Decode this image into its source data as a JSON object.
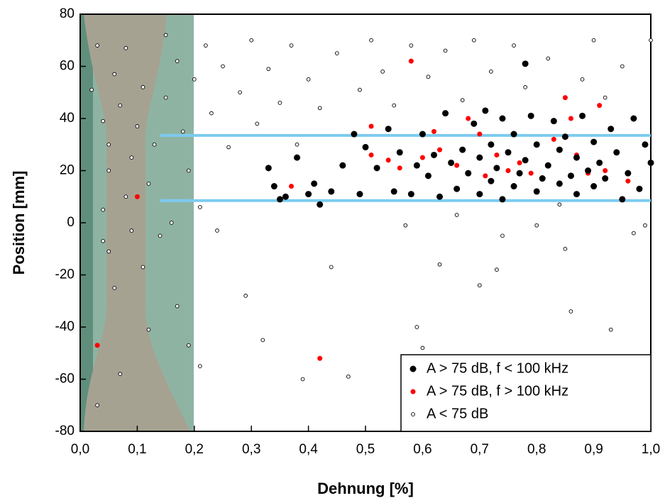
{
  "chart_data": {
    "type": "scatter",
    "xlabel": "Dehnung [%]",
    "ylabel": "Position [mm]",
    "xlim": [
      0,
      1.0
    ],
    "ylim": [
      -80,
      80
    ],
    "xticks": [
      {
        "value": 0,
        "label": "0,0"
      },
      {
        "value": 0.1,
        "label": "0,1"
      },
      {
        "value": 0.2,
        "label": "0,2"
      },
      {
        "value": 0.3,
        "label": "0,3"
      },
      {
        "value": 0.4,
        "label": "0,4"
      },
      {
        "value": 0.5,
        "label": "0,5"
      },
      {
        "value": 0.6,
        "label": "0,6"
      },
      {
        "value": 0.7,
        "label": "0,7"
      },
      {
        "value": 0.8,
        "label": "0,8"
      },
      {
        "value": 0.9,
        "label": "0,9"
      },
      {
        "value": 1.0,
        "label": "1,0"
      }
    ],
    "yticks": [
      -80,
      -60,
      -40,
      -20,
      0,
      20,
      40,
      60,
      80
    ],
    "legend": "lower right",
    "reference_lines": [
      {
        "y": 33.5,
        "x": [
          0.14,
          1.0
        ],
        "color": "#7ccbf0"
      },
      {
        "y": 8.5,
        "x": [
          0.14,
          1.0
        ],
        "color": "#7ccbf0"
      }
    ],
    "series": [
      {
        "name": "A > 75 dB, f < 100 kHz",
        "color": "#000000",
        "x": [
          0.33,
          0.34,
          0.35,
          0.36,
          0.38,
          0.4,
          0.41,
          0.42,
          0.44,
          0.46,
          0.48,
          0.49,
          0.5,
          0.52,
          0.54,
          0.55,
          0.56,
          0.58,
          0.59,
          0.6,
          0.61,
          0.62,
          0.63,
          0.64,
          0.65,
          0.66,
          0.67,
          0.68,
          0.69,
          0.7,
          0.7,
          0.71,
          0.72,
          0.72,
          0.73,
          0.74,
          0.74,
          0.75,
          0.76,
          0.76,
          0.77,
          0.78,
          0.78,
          0.79,
          0.8,
          0.8,
          0.81,
          0.82,
          0.83,
          0.84,
          0.84,
          0.85,
          0.86,
          0.87,
          0.87,
          0.88,
          0.89,
          0.9,
          0.9,
          0.91,
          0.92,
          0.93,
          0.94,
          0.95,
          0.96,
          0.97,
          0.98,
          0.99,
          1.0
        ],
        "values": [
          21,
          14,
          9,
          10,
          25,
          11,
          15,
          7,
          12,
          22,
          34,
          11,
          29,
          21,
          36,
          12,
          27,
          11,
          22,
          34,
          18,
          26,
          10,
          42,
          23,
          13,
          28,
          19,
          38,
          11,
          25,
          43,
          16,
          30,
          21,
          9,
          40,
          27,
          14,
          34,
          19,
          24,
          61,
          41,
          12,
          30,
          17,
          22,
          39,
          15,
          28,
          33,
          18,
          11,
          25,
          41,
          20,
          14,
          31,
          23,
          17,
          36,
          27,
          9,
          19,
          40,
          13,
          30,
          23
        ]
      },
      {
        "name": "A > 75 dB, f > 100 kHz",
        "color": "#ff0000",
        "x": [
          0.03,
          0.1,
          0.42,
          0.51,
          0.51,
          0.54,
          0.56,
          0.58,
          0.6,
          0.62,
          0.63,
          0.64,
          0.66,
          0.68,
          0.7,
          0.71,
          0.73,
          0.75,
          0.77,
          0.79,
          0.81,
          0.83,
          0.85,
          0.86,
          0.87,
          0.89,
          0.91,
          0.92,
          0.94,
          0.96,
          0.37
        ],
        "values": [
          -47,
          10,
          -52,
          37,
          26,
          24,
          21,
          62,
          25,
          35,
          28,
          42,
          22,
          40,
          34,
          18,
          26,
          20,
          23,
          19,
          17,
          32,
          48,
          40,
          26,
          19,
          45,
          20,
          27,
          16,
          14
        ]
      },
      {
        "name": "A < 75 dB",
        "color": "#ffffff",
        "x": [
          0.02,
          0.03,
          0.03,
          0.04,
          0.04,
          0.04,
          0.05,
          0.05,
          0.05,
          0.06,
          0.06,
          0.07,
          0.07,
          0.08,
          0.08,
          0.09,
          0.09,
          0.1,
          0.11,
          0.11,
          0.12,
          0.12,
          0.13,
          0.14,
          0.15,
          0.15,
          0.16,
          0.17,
          0.17,
          0.18,
          0.19,
          0.19,
          0.2,
          0.21,
          0.21,
          0.22,
          0.23,
          0.24,
          0.25,
          0.26,
          0.28,
          0.29,
          0.3,
          0.31,
          0.32,
          0.33,
          0.35,
          0.37,
          0.38,
          0.39,
          0.4,
          0.42,
          0.44,
          0.45,
          0.47,
          0.49,
          0.51,
          0.53,
          0.55,
          0.57,
          0.58,
          0.59,
          0.6,
          0.61,
          0.63,
          0.64,
          0.66,
          0.67,
          0.69,
          0.7,
          0.72,
          0.73,
          0.74,
          0.76,
          0.78,
          0.8,
          0.82,
          0.84,
          0.85,
          0.86,
          0.88,
          0.9,
          0.92,
          0.93,
          0.95,
          0.97,
          0.99,
          1.0
        ],
        "values": [
          51,
          -70,
          68,
          39,
          5,
          -7,
          30,
          -11,
          20,
          57,
          -25,
          45,
          -58,
          10,
          67,
          -3,
          25,
          37,
          -17,
          52,
          -41,
          15,
          30,
          -5,
          72,
          48,
          0,
          -32,
          62,
          35,
          20,
          -47,
          55,
          -55,
          6,
          68,
          42,
          -3,
          60,
          29,
          50,
          -28,
          70,
          38,
          -45,
          59,
          46,
          68,
          30,
          -60,
          55,
          44,
          -17,
          65,
          -59,
          51,
          70,
          58,
          45,
          -1,
          68,
          -40,
          -48,
          56,
          -16,
          66,
          3,
          47,
          70,
          -24,
          58,
          -18,
          -5,
          68,
          52,
          -1,
          63,
          7,
          -10,
          -34,
          55,
          70,
          48,
          -41,
          60,
          -4,
          -1,
          70
        ]
      }
    ]
  }
}
